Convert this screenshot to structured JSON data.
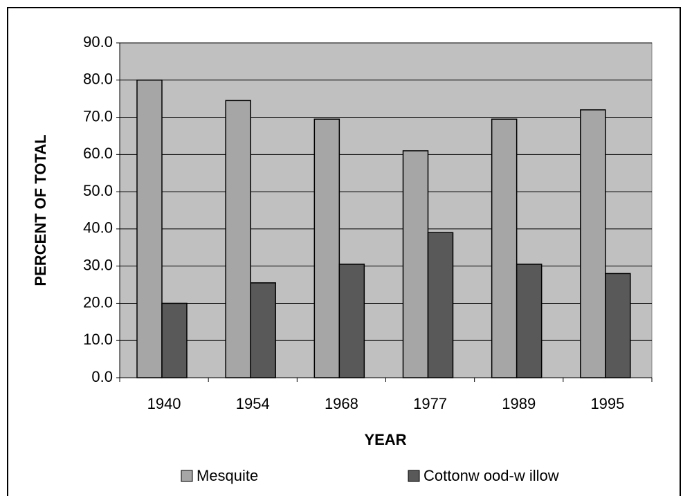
{
  "chart_data": {
    "type": "bar",
    "x_label": "YEAR",
    "y_label": "PERCENT OF TOTAL",
    "categories": [
      "1940",
      "1954",
      "1968",
      "1977",
      "1989",
      "1995"
    ],
    "series": [
      {
        "name": "Mesquite",
        "color": "#a6a6a6",
        "values": [
          80,
          74.5,
          69.5,
          61,
          69.5,
          72
        ]
      },
      {
        "name": "Cottonw ood-w illow",
        "color": "#595959",
        "values": [
          20,
          25.5,
          30.5,
          39,
          30.5,
          28
        ]
      }
    ],
    "ylim": [
      0,
      90
    ],
    "yticks": [
      {
        "value": 0,
        "label": "0.0"
      },
      {
        "value": 10,
        "label": "10.0"
      },
      {
        "value": 20,
        "label": "20.0"
      },
      {
        "value": 30,
        "label": "30.0"
      },
      {
        "value": 40,
        "label": "40.0"
      },
      {
        "value": 50,
        "label": "50.0"
      },
      {
        "value": 60,
        "label": "60.0"
      },
      {
        "value": 70,
        "label": "70.0"
      },
      {
        "value": 80,
        "label": "80.0"
      },
      {
        "value": 90,
        "label": "90.0"
      }
    ],
    "grid": true,
    "plot_background": "#c0c0c0",
    "legend": "bottom"
  }
}
